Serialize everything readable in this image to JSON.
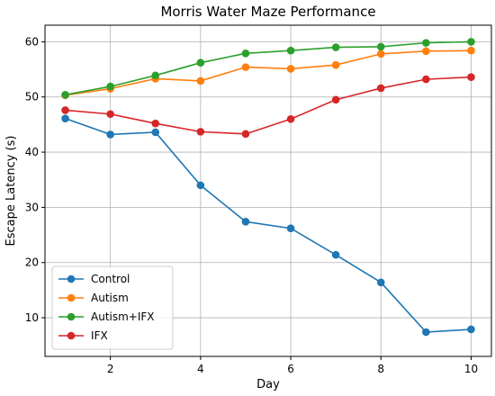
{
  "chart_data": {
    "type": "line",
    "title": "Morris Water Maze Performance",
    "xlabel": "Day",
    "ylabel": "Escape Latency (s)",
    "x": [
      1,
      2,
      3,
      4,
      5,
      6,
      7,
      8,
      9,
      10
    ],
    "xlim": [
      0.55,
      10.45
    ],
    "ylim": [
      3.0,
      63.0
    ],
    "xticks": [
      2,
      4,
      6,
      8,
      10
    ],
    "yticks": [
      10,
      20,
      30,
      40,
      50,
      60
    ],
    "grid": true,
    "legend_position": "lower-left",
    "series": [
      {
        "name": "Control",
        "color": "#1f77b4",
        "values": [
          46.1,
          43.2,
          43.6,
          34.0,
          27.4,
          26.2,
          21.4,
          16.4,
          7.4,
          7.9
        ]
      },
      {
        "name": "Autism",
        "color": "#ff7f0e",
        "values": [
          50.3,
          51.5,
          53.3,
          52.9,
          55.4,
          55.1,
          55.8,
          57.8,
          58.3,
          58.4
        ]
      },
      {
        "name": "Autism+IFX",
        "color": "#2ca02c",
        "values": [
          50.4,
          51.9,
          53.9,
          56.2,
          57.9,
          58.4,
          59.0,
          59.1,
          59.8,
          60.0
        ]
      },
      {
        "name": "IFX",
        "color": "#d62728",
        "values": [
          47.6,
          46.9,
          45.2,
          43.7,
          43.3,
          46.0,
          49.5,
          51.6,
          53.2,
          53.6
        ]
      }
    ]
  }
}
